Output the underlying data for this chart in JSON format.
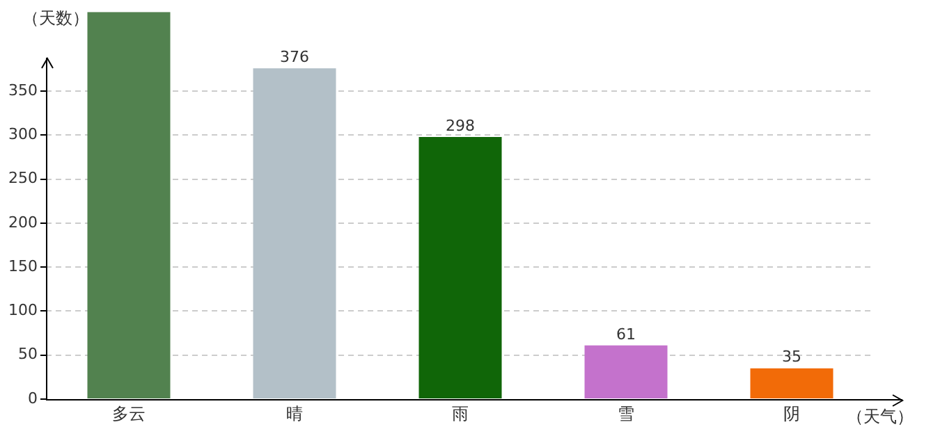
{
  "chart_data": {
    "type": "bar",
    "xlabel": "（天气）",
    "ylabel": "（天数）",
    "categories": [
      "多云",
      "晴",
      "雨",
      "雪",
      "阴"
    ],
    "values": [
      440,
      376,
      298,
      61,
      35
    ],
    "value_labels": [
      null,
      "376",
      "298",
      "61",
      "35"
    ],
    "colors": [
      "#52824f",
      "#b3c0c8",
      "#106608",
      "#c472cc",
      "#f26b08"
    ],
    "ylim": [
      0,
      440
    ],
    "yticks": [
      0,
      50,
      100,
      150,
      200,
      250,
      300,
      350
    ],
    "grid": "y",
    "legend": false
  }
}
